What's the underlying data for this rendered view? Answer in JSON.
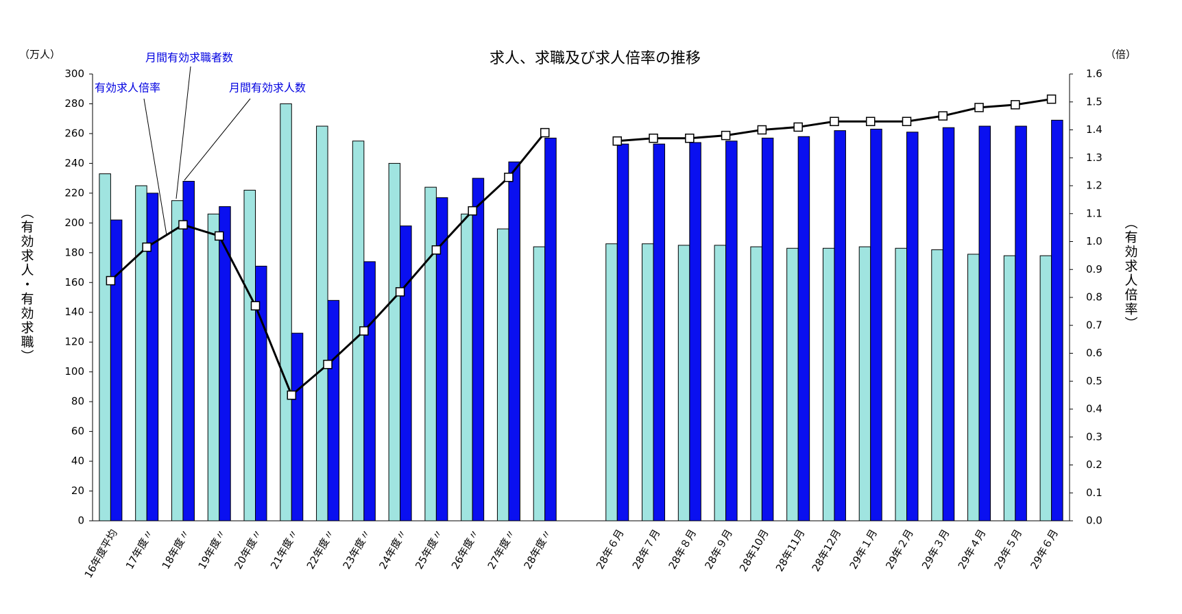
{
  "chart_data": {
    "type": "bar",
    "title": "求人、求職及び求人倍率の推移",
    "yunit": "（万人）",
    "y2unit": "（倍）",
    "ylabel": "（有効求人・有効求職）",
    "y2label": "（有効求人倍率）",
    "categories": [
      "16年度平均",
      "17年度〃",
      "18年度〃",
      "19年度〃",
      "20年度〃",
      "21年度〃",
      "22年度〃",
      "23年度〃",
      "24年度〃",
      "25年度〃",
      "26年度〃",
      "27年度〃",
      "28年度〃",
      null,
      "28年６月",
      "28年７月",
      "28年８月",
      "28年９月",
      "28年10月",
      "28年11月",
      "28年12月",
      "29年１月",
      "29年２月",
      "29年３月",
      "29年４月",
      "29年５月",
      "29年６月"
    ],
    "series": [
      {
        "name": "月間有効求職者数",
        "color": "#a0e4e0",
        "values": [
          233,
          225,
          215,
          206,
          222,
          280,
          265,
          255,
          240,
          224,
          206,
          196,
          184,
          null,
          186,
          186,
          185,
          185,
          184,
          183,
          183,
          184,
          183,
          182,
          179,
          178,
          178
        ]
      },
      {
        "name": "月間有効求人数",
        "color": "#0a10f0",
        "values": [
          202,
          220,
          228,
          211,
          171,
          126,
          148,
          174,
          198,
          217,
          230,
          241,
          257,
          null,
          253,
          253,
          254,
          255,
          257,
          258,
          262,
          263,
          261,
          264,
          265,
          265,
          269
        ]
      },
      {
        "name": "有効求人倍率",
        "type": "line",
        "axis": "y2",
        "color": "#000000",
        "values": [
          0.86,
          0.98,
          1.06,
          1.02,
          0.77,
          0.45,
          0.56,
          0.68,
          0.82,
          0.97,
          1.11,
          1.23,
          1.39,
          null,
          1.36,
          1.37,
          1.37,
          1.38,
          1.4,
          1.41,
          1.43,
          1.43,
          1.43,
          1.45,
          1.48,
          1.49,
          1.51
        ]
      }
    ],
    "ylim": [
      0,
      300
    ],
    "yticks": [
      0,
      20,
      40,
      60,
      80,
      100,
      120,
      140,
      160,
      180,
      200,
      220,
      240,
      260,
      280,
      300
    ],
    "y2lim": [
      0,
      1.6
    ],
    "y2ticks": [
      {
        "value": 0,
        "label": "0.0"
      },
      0.1,
      0.2,
      0.3,
      0.4,
      0.5,
      0.6,
      0.7,
      0.8,
      0.9,
      {
        "value": 1,
        "label": "1.0"
      },
      1.1,
      1.2,
      1.3,
      1.4,
      1.5,
      1.6
    ]
  }
}
